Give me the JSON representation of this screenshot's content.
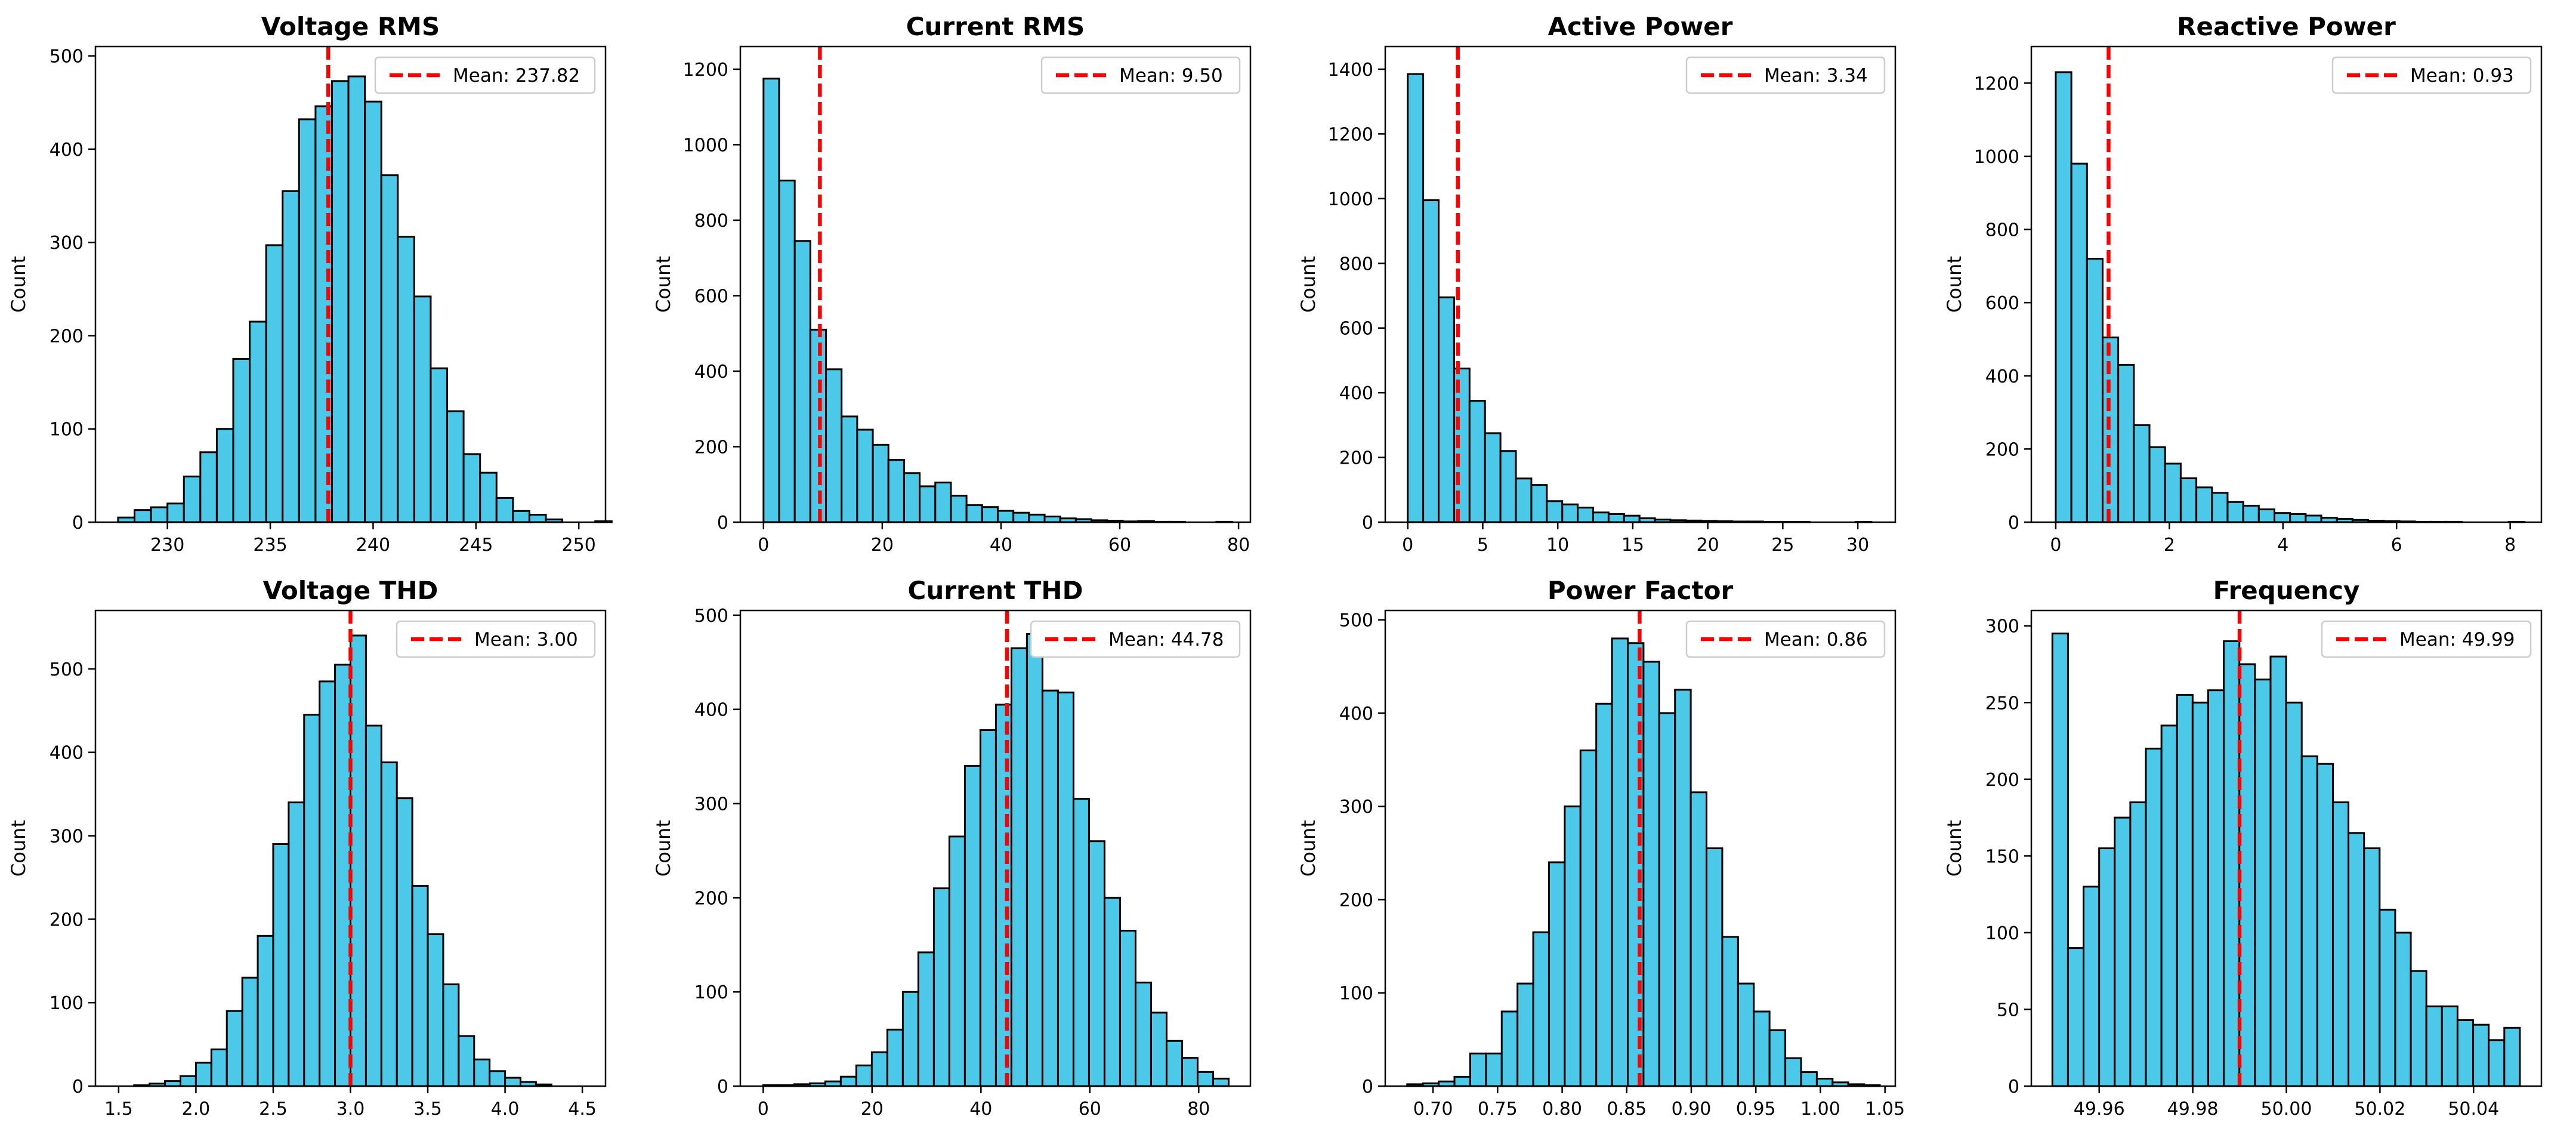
{
  "colors": {
    "bar_fill": "#4cc8e8",
    "bar_edge": "#000000",
    "mean_line": "#ff0000",
    "axis": "#000000"
  },
  "chart_data": [
    {
      "type": "bar",
      "title": "Voltage RMS",
      "xlabel": "",
      "ylabel": "Count",
      "mean_label": "Mean: 237.82",
      "mean": 237.82,
      "bin_start": 227.6,
      "bin_width": 0.8,
      "values": [
        5,
        13,
        16,
        20,
        49,
        75,
        100,
        175,
        215,
        297,
        355,
        432,
        446,
        473,
        478,
        451,
        372,
        306,
        242,
        165,
        119,
        73,
        53,
        26,
        12,
        8,
        3,
        0,
        0,
        1
      ],
      "xlim": [
        226.5,
        251.3
      ],
      "ylim": [
        0,
        510
      ],
      "xticks": [
        230,
        235,
        240,
        245,
        250
      ],
      "xtick_labels": [
        "230",
        "235",
        "240",
        "245",
        "250"
      ],
      "yticks": [
        0,
        100,
        200,
        300,
        400,
        500
      ],
      "ytick_labels": [
        "0",
        "100",
        "200",
        "300",
        "400",
        "500"
      ]
    },
    {
      "type": "bar",
      "title": "Current RMS",
      "xlabel": "",
      "ylabel": "Count",
      "mean_label": "Mean: 9.50",
      "mean": 9.5,
      "bin_start": 0.0,
      "bin_width": 2.63,
      "values": [
        1175,
        905,
        745,
        510,
        405,
        280,
        245,
        205,
        165,
        130,
        95,
        105,
        70,
        45,
        40,
        30,
        25,
        20,
        15,
        10,
        8,
        5,
        4,
        2,
        3,
        1,
        1,
        0,
        0,
        1
      ],
      "xlim": [
        -3.9,
        82.0
      ],
      "ylim": [
        0,
        1260
      ],
      "xticks": [
        0,
        20,
        40,
        60,
        80
      ],
      "xtick_labels": [
        "0",
        "20",
        "40",
        "60",
        "80"
      ],
      "yticks": [
        0,
        200,
        400,
        600,
        800,
        1000,
        1200
      ],
      "ytick_labels": [
        "0",
        "200",
        "400",
        "600",
        "800",
        "1000",
        "1200"
      ]
    },
    {
      "type": "bar",
      "title": "Active Power",
      "xlabel": "",
      "ylabel": "Count",
      "mean_label": "Mean: 3.34",
      "mean": 3.34,
      "bin_start": 0.0,
      "bin_width": 1.03,
      "values": [
        1385,
        995,
        695,
        475,
        375,
        275,
        220,
        135,
        115,
        65,
        55,
        45,
        30,
        25,
        20,
        12,
        8,
        6,
        5,
        4,
        3,
        2,
        2,
        1,
        1,
        1,
        0,
        0,
        0,
        1
      ],
      "xlim": [
        -1.5,
        32.5
      ],
      "ylim": [
        0,
        1470
      ],
      "xticks": [
        0,
        5,
        10,
        15,
        20,
        25,
        30
      ],
      "xtick_labels": [
        "0",
        "5",
        "10",
        "15",
        "20",
        "25",
        "30"
      ],
      "yticks": [
        0,
        200,
        400,
        600,
        800,
        1000,
        1200,
        1400
      ],
      "ytick_labels": [
        "0",
        "200",
        "400",
        "600",
        "800",
        "1000",
        "1200",
        "1400"
      ]
    },
    {
      "type": "bar",
      "title": "Reactive Power",
      "xlabel": "",
      "ylabel": "Count",
      "mean_label": "Mean: 0.93",
      "mean": 0.93,
      "bin_start": 0.0,
      "bin_width": 0.275,
      "values": [
        1230,
        980,
        720,
        505,
        430,
        265,
        205,
        160,
        120,
        95,
        80,
        55,
        45,
        35,
        25,
        22,
        18,
        12,
        9,
        6,
        4,
        3,
        2,
        1,
        1,
        1,
        0,
        0,
        0,
        1
      ],
      "xlim": [
        -0.43,
        8.55
      ],
      "ylim": [
        0,
        1300
      ],
      "xticks": [
        0,
        2,
        4,
        6,
        8
      ],
      "xtick_labels": [
        "0",
        "2",
        "4",
        "6",
        "8"
      ],
      "yticks": [
        0,
        200,
        400,
        600,
        800,
        1000,
        1200
      ],
      "ytick_labels": [
        "0",
        "200",
        "400",
        "600",
        "800",
        "1000",
        "1200"
      ]
    },
    {
      "type": "bar",
      "title": "Voltage THD",
      "xlabel": "",
      "ylabel": "Count",
      "mean_label": "Mean: 3.00",
      "mean": 3.0,
      "bin_start": 1.5,
      "bin_width": 0.1,
      "values": [
        0,
        1,
        3,
        6,
        12,
        28,
        44,
        90,
        130,
        180,
        290,
        340,
        445,
        485,
        505,
        540,
        432,
        388,
        345,
        240,
        182,
        122,
        60,
        32,
        18,
        10,
        5,
        2,
        0,
        0
      ],
      "xlim": [
        1.35,
        4.65
      ],
      "ylim": [
        0,
        570
      ],
      "xticks": [
        1.5,
        2.0,
        2.5,
        3.0,
        3.5,
        4.0,
        4.5
      ],
      "xtick_labels": [
        "1.5",
        "2.0",
        "2.5",
        "3.0",
        "3.5",
        "4.0",
        "4.5"
      ],
      "yticks": [
        0,
        100,
        200,
        300,
        400,
        500
      ],
      "ytick_labels": [
        "0",
        "100",
        "200",
        "300",
        "400",
        "500"
      ]
    },
    {
      "type": "bar",
      "title": "Current THD",
      "xlabel": "",
      "ylabel": "Count",
      "mean_label": "Mean: 44.78",
      "mean": 44.78,
      "bin_start": 0.0,
      "bin_width": 2.85,
      "values": [
        1,
        1,
        2,
        3,
        5,
        10,
        22,
        36,
        60,
        100,
        142,
        210,
        265,
        340,
        378,
        405,
        465,
        480,
        420,
        418,
        305,
        260,
        200,
        165,
        110,
        78,
        48,
        30,
        15,
        8
      ],
      "xlim": [
        -4.2,
        89.5
      ],
      "ylim": [
        0,
        505
      ],
      "xticks": [
        0,
        20,
        40,
        60,
        80
      ],
      "xtick_labels": [
        "0",
        "20",
        "40",
        "60",
        "80"
      ],
      "yticks": [
        0,
        100,
        200,
        300,
        400,
        500
      ],
      "ytick_labels": [
        "0",
        "100",
        "200",
        "300",
        "400",
        "500"
      ]
    },
    {
      "type": "bar",
      "title": "Power Factor",
      "xlabel": "",
      "ylabel": "Count",
      "mean_label": "Mean: 0.86",
      "mean": 0.86,
      "bin_start": 0.68,
      "bin_width": 0.0122,
      "values": [
        2,
        3,
        5,
        10,
        35,
        35,
        80,
        110,
        165,
        240,
        300,
        360,
        410,
        480,
        475,
        455,
        400,
        425,
        315,
        255,
        160,
        110,
        80,
        60,
        30,
        15,
        8,
        4,
        2,
        1
      ],
      "xlim": [
        0.663,
        1.058
      ],
      "ylim": [
        0,
        510
      ],
      "xticks": [
        0.7,
        0.75,
        0.8,
        0.85,
        0.9,
        0.95,
        1.0,
        1.05
      ],
      "xtick_labels": [
        "0.70",
        "0.75",
        "0.80",
        "0.85",
        "0.90",
        "0.95",
        "1.00",
        "1.05"
      ],
      "yticks": [
        0,
        100,
        200,
        300,
        400,
        500
      ],
      "ytick_labels": [
        "0",
        "100",
        "200",
        "300",
        "400",
        "500"
      ]
    },
    {
      "type": "bar",
      "title": "Frequency",
      "xlabel": "",
      "ylabel": "Count",
      "mean_label": "Mean: 49.99",
      "mean": 49.99,
      "bin_start": 49.95,
      "bin_width": 0.00333,
      "values": [
        295,
        90,
        130,
        155,
        175,
        185,
        220,
        235,
        255,
        250,
        258,
        290,
        275,
        265,
        280,
        250,
        215,
        210,
        185,
        165,
        155,
        115,
        100,
        75,
        52,
        52,
        43,
        40,
        30,
        38
      ],
      "xlim": [
        49.9455,
        50.0545
      ],
      "ylim": [
        0,
        310
      ],
      "xticks": [
        49.96,
        49.98,
        50.0,
        50.02,
        50.04
      ],
      "xtick_labels": [
        "49.96",
        "49.98",
        "50.00",
        "50.02",
        "50.04"
      ],
      "yticks": [
        0,
        50,
        100,
        150,
        200,
        250,
        300
      ],
      "ytick_labels": [
        "0",
        "50",
        "100",
        "150",
        "200",
        "250",
        "300"
      ]
    }
  ]
}
